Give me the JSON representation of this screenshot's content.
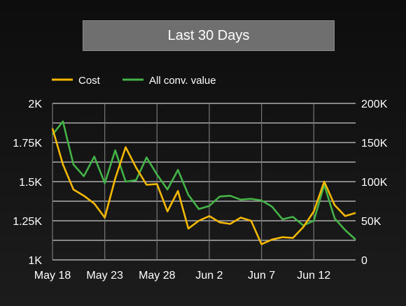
{
  "title_button": {
    "label": "Last 30 Days"
  },
  "colors": {
    "cost": "#f5b800",
    "conv": "#44b347",
    "grid": "#cccccc",
    "background": "#151515"
  },
  "chart_data": {
    "type": "line",
    "title": "",
    "grid": true,
    "legend_position": "top-left",
    "x_tick_labels": [
      "May 18",
      "May 23",
      "May 28",
      "Jun 2",
      "Jun 7",
      "Jun 12"
    ],
    "x": [
      "May 18",
      "May 19",
      "May 20",
      "May 21",
      "May 22",
      "May 23",
      "May 24",
      "May 25",
      "May 26",
      "May 27",
      "May 28",
      "May 29",
      "May 30",
      "May 31",
      "Jun 1",
      "Jun 2",
      "Jun 3",
      "Jun 4",
      "Jun 5",
      "Jun 6",
      "Jun 7",
      "Jun 8",
      "Jun 9",
      "Jun 10",
      "Jun 11",
      "Jun 12",
      "Jun 13",
      "Jun 14",
      "Jun 15",
      "Jun 16"
    ],
    "y_left": {
      "ylim": [
        1000,
        2000
      ],
      "tick_values": [
        1000,
        1250,
        1500,
        1750,
        2000
      ],
      "tick_labels": [
        "1K",
        "1.25K",
        "1.5K",
        "1.75K",
        "2K"
      ]
    },
    "y_right": {
      "ylim": [
        0,
        200000
      ],
      "tick_values": [
        0,
        50000,
        100000,
        150000,
        200000
      ],
      "tick_labels": [
        "0",
        "50K",
        "100K",
        "150K",
        "200K"
      ]
    },
    "series": [
      {
        "name": "Cost",
        "axis": "left",
        "values": [
          1840,
          1610,
          1450,
          1410,
          1360,
          1270,
          1520,
          1720,
          1590,
          1480,
          1485,
          1310,
          1440,
          1200,
          1250,
          1280,
          1240,
          1230,
          1270,
          1250,
          1100,
          1130,
          1145,
          1140,
          1210,
          1310,
          1500,
          1350,
          1280,
          1300
        ]
      },
      {
        "name": "All conv. value",
        "axis": "right",
        "values": [
          160000,
          177000,
          122000,
          107000,
          132000,
          98000,
          140000,
          100000,
          102000,
          131000,
          109000,
          90000,
          115000,
          83000,
          65000,
          69000,
          81000,
          82000,
          77000,
          78000,
          76000,
          68000,
          52000,
          55000,
          44000,
          50000,
          96000,
          53000,
          38000,
          26000
        ]
      }
    ]
  }
}
